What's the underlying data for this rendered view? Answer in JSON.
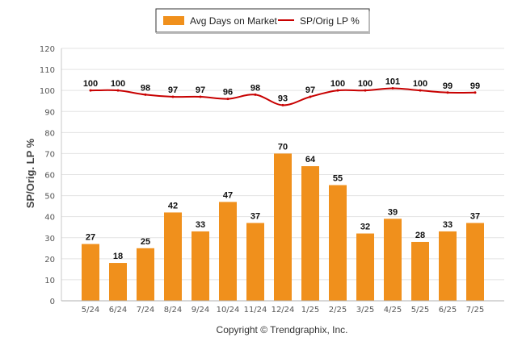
{
  "chart_data": {
    "type": "bar",
    "categories": [
      "5/24",
      "6/24",
      "7/24",
      "8/24",
      "9/24",
      "10/24",
      "11/24",
      "12/24",
      "1/25",
      "2/25",
      "3/25",
      "4/25",
      "5/25",
      "6/25",
      "7/25"
    ],
    "series": [
      {
        "name": "Avg Days on Market",
        "type": "bar",
        "values": [
          27,
          18,
          25,
          42,
          33,
          47,
          37,
          70,
          64,
          55,
          32,
          39,
          28,
          33,
          37
        ],
        "color": "#f0901c"
      },
      {
        "name": "SP/Orig LP %",
        "type": "line",
        "values": [
          100,
          100,
          98,
          97,
          97,
          96,
          98,
          93,
          97,
          100,
          100,
          101,
          100,
          99,
          99
        ],
        "color": "#c80000"
      }
    ],
    "ylabel": "SP/Orig. LP %",
    "ylim": [
      0,
      120
    ],
    "yticks": [
      0,
      10,
      20,
      30,
      40,
      50,
      60,
      70,
      80,
      90,
      100,
      110,
      120
    ],
    "grid": true,
    "legend": "top-center"
  },
  "footer": {
    "copyright": "Copyright © Trendgraphix, Inc."
  }
}
